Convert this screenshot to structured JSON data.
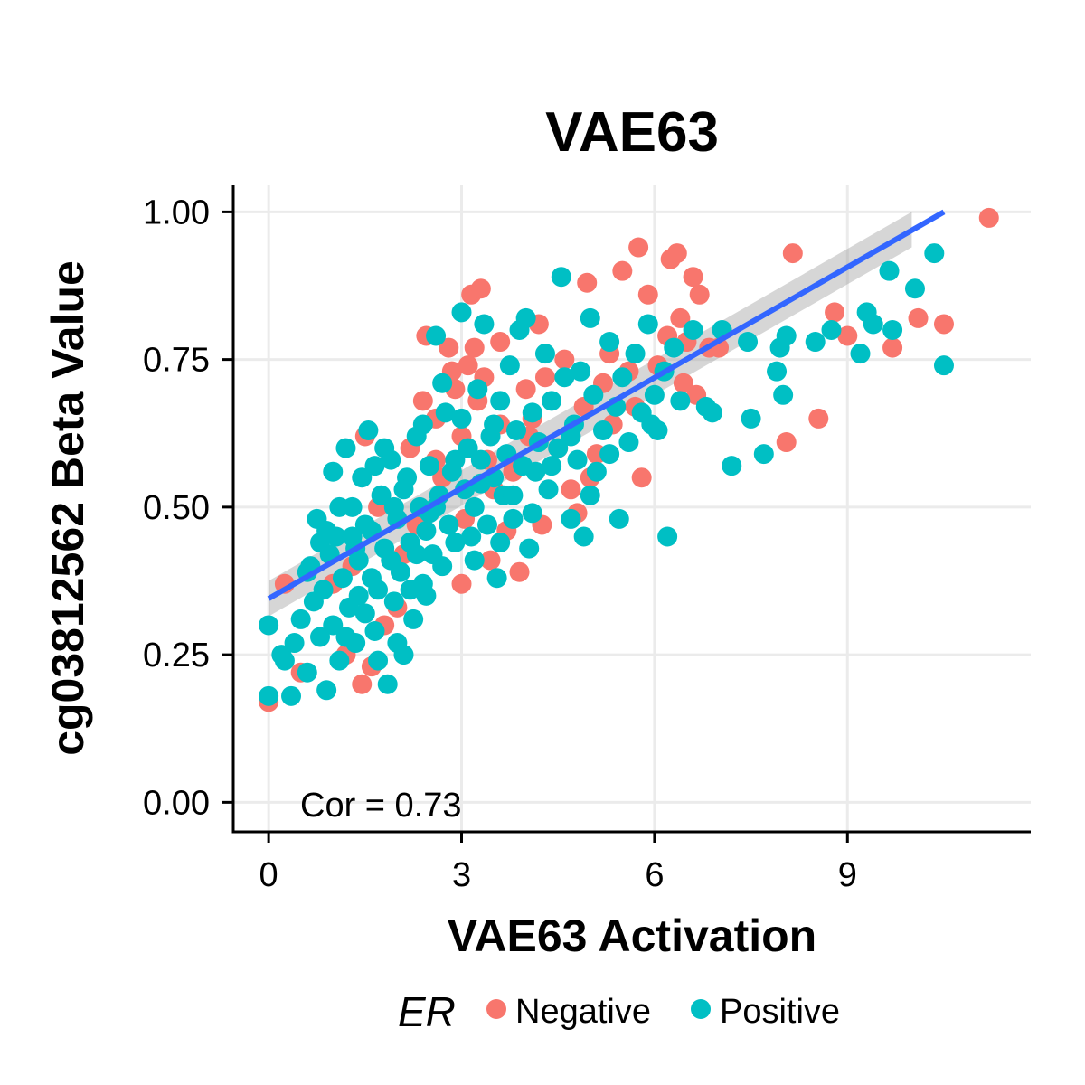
{
  "chart_data": {
    "type": "scatter",
    "title": "VAE63",
    "xlabel": "VAE63 Activation",
    "ylabel": "cg03812562 Beta Value",
    "xlim": [
      -0.55,
      11.85
    ],
    "ylim": [
      -0.05,
      1.045
    ],
    "x_ticks": [
      0,
      3,
      6,
      9
    ],
    "x_tick_labels": [
      "0",
      "3",
      "6",
      "9"
    ],
    "y_ticks": [
      0,
      0.25,
      0.5,
      0.75,
      1.0
    ],
    "y_tick_labels": [
      "0.00",
      "0.25",
      "0.50",
      "0.75",
      "1.00"
    ],
    "grid": true,
    "annotation": "Cor = 0.73",
    "legend": {
      "title": "ER",
      "position": "bottom",
      "entries": [
        {
          "label": "Negative",
          "color": "#F8766D"
        },
        {
          "label": "Positive",
          "color": "#00BFC4"
        }
      ]
    },
    "series": [
      {
        "name": "Negative",
        "color": "#F8766D",
        "points": [
          [
            0.0,
            0.17
          ],
          [
            0.25,
            0.37
          ],
          [
            0.5,
            0.22
          ],
          [
            1.0,
            0.37
          ],
          [
            1.2,
            0.25
          ],
          [
            1.45,
            0.2
          ],
          [
            1.6,
            0.23
          ],
          [
            1.5,
            0.62
          ],
          [
            1.8,
            0.3
          ],
          [
            2.1,
            0.42
          ],
          [
            2.2,
            0.6
          ],
          [
            2.4,
            0.68
          ],
          [
            2.45,
            0.79
          ],
          [
            2.6,
            0.65
          ],
          [
            2.8,
            0.77
          ],
          [
            2.85,
            0.73
          ],
          [
            2.9,
            0.7
          ],
          [
            3.0,
            0.62
          ],
          [
            3.05,
            0.48
          ],
          [
            3.1,
            0.74
          ],
          [
            3.15,
            0.86
          ],
          [
            3.2,
            0.77
          ],
          [
            3.25,
            0.68
          ],
          [
            3.3,
            0.87
          ],
          [
            3.35,
            0.72
          ],
          [
            3.4,
            0.58
          ],
          [
            3.45,
            0.41
          ],
          [
            3.5,
            0.53
          ],
          [
            3.6,
            0.64
          ],
          [
            3.7,
            0.46
          ],
          [
            3.8,
            0.56
          ],
          [
            3.9,
            0.39
          ],
          [
            4.0,
            0.7
          ],
          [
            4.05,
            0.62
          ],
          [
            4.2,
            0.81
          ],
          [
            4.25,
            0.47
          ],
          [
            4.3,
            0.72
          ],
          [
            4.5,
            0.6
          ],
          [
            4.6,
            0.75
          ],
          [
            4.7,
            0.53
          ],
          [
            4.8,
            0.49
          ],
          [
            4.9,
            0.67
          ],
          [
            4.95,
            0.88
          ],
          [
            5.0,
            0.55
          ],
          [
            5.1,
            0.59
          ],
          [
            5.2,
            0.71
          ],
          [
            5.3,
            0.76
          ],
          [
            5.35,
            0.64
          ],
          [
            5.5,
            0.9
          ],
          [
            5.6,
            0.73
          ],
          [
            5.7,
            0.67
          ],
          [
            5.75,
            0.94
          ],
          [
            5.8,
            0.55
          ],
          [
            5.9,
            0.86
          ],
          [
            6.05,
            0.74
          ],
          [
            6.2,
            0.79
          ],
          [
            6.25,
            0.92
          ],
          [
            6.35,
            0.93
          ],
          [
            6.4,
            0.82
          ],
          [
            6.45,
            0.71
          ],
          [
            6.5,
            0.78
          ],
          [
            6.6,
            0.89
          ],
          [
            6.65,
            0.69
          ],
          [
            6.7,
            0.86
          ],
          [
            6.85,
            0.77
          ],
          [
            7.0,
            0.77
          ],
          [
            8.05,
            0.61
          ],
          [
            8.15,
            0.93
          ],
          [
            8.55,
            0.65
          ],
          [
            8.8,
            0.83
          ],
          [
            9.0,
            0.79
          ],
          [
            9.7,
            0.77
          ],
          [
            10.1,
            0.82
          ],
          [
            10.5,
            0.81
          ],
          [
            11.2,
            0.99
          ],
          [
            2.0,
            0.33
          ],
          [
            2.3,
            0.47
          ],
          [
            2.7,
            0.55
          ],
          [
            1.3,
            0.4
          ],
          [
            1.7,
            0.5
          ],
          [
            2.6,
            0.58
          ],
          [
            3.0,
            0.37
          ],
          [
            3.6,
            0.78
          ],
          [
            4.1,
            0.65
          ]
        ]
      },
      {
        "name": "Positive",
        "color": "#00BFC4",
        "points": [
          [
            0.0,
            0.18
          ],
          [
            0.0,
            0.3
          ],
          [
            0.2,
            0.25
          ],
          [
            0.25,
            0.24
          ],
          [
            0.35,
            0.18
          ],
          [
            0.4,
            0.27
          ],
          [
            0.5,
            0.31
          ],
          [
            0.6,
            0.22
          ],
          [
            0.65,
            0.4
          ],
          [
            0.7,
            0.34
          ],
          [
            0.75,
            0.48
          ],
          [
            0.8,
            0.28
          ],
          [
            0.85,
            0.36
          ],
          [
            0.9,
            0.19
          ],
          [
            0.95,
            0.42
          ],
          [
            1.0,
            0.3
          ],
          [
            1.05,
            0.45
          ],
          [
            1.1,
            0.24
          ],
          [
            1.15,
            0.38
          ],
          [
            1.2,
            0.6
          ],
          [
            1.25,
            0.33
          ],
          [
            1.3,
            0.5
          ],
          [
            1.35,
            0.27
          ],
          [
            1.4,
            0.41
          ],
          [
            1.45,
            0.55
          ],
          [
            1.5,
            0.32
          ],
          [
            1.55,
            0.63
          ],
          [
            1.6,
            0.46
          ],
          [
            1.65,
            0.29
          ],
          [
            1.7,
            0.36
          ],
          [
            1.75,
            0.52
          ],
          [
            1.8,
            0.43
          ],
          [
            1.85,
            0.2
          ],
          [
            1.9,
            0.58
          ],
          [
            1.95,
            0.34
          ],
          [
            2.0,
            0.48
          ],
          [
            2.05,
            0.39
          ],
          [
            2.1,
            0.25
          ],
          [
            2.15,
            0.55
          ],
          [
            2.2,
            0.44
          ],
          [
            2.25,
            0.31
          ],
          [
            2.3,
            0.62
          ],
          [
            2.35,
            0.5
          ],
          [
            2.4,
            0.37
          ],
          [
            2.45,
            0.46
          ],
          [
            2.5,
            0.57
          ],
          [
            2.55,
            0.42
          ],
          [
            2.6,
            0.79
          ],
          [
            2.65,
            0.52
          ],
          [
            2.7,
            0.4
          ],
          [
            2.75,
            0.66
          ],
          [
            2.8,
            0.47
          ],
          [
            2.85,
            0.56
          ],
          [
            2.9,
            0.44
          ],
          [
            3.0,
            0.83
          ],
          [
            3.05,
            0.53
          ],
          [
            3.1,
            0.6
          ],
          [
            3.15,
            0.45
          ],
          [
            3.2,
            0.5
          ],
          [
            3.25,
            0.7
          ],
          [
            3.3,
            0.58
          ],
          [
            3.35,
            0.81
          ],
          [
            3.4,
            0.47
          ],
          [
            3.45,
            0.62
          ],
          [
            3.5,
            0.55
          ],
          [
            3.55,
            0.38
          ],
          [
            3.6,
            0.68
          ],
          [
            3.65,
            0.52
          ],
          [
            3.7,
            0.59
          ],
          [
            3.75,
            0.74
          ],
          [
            3.8,
            0.48
          ],
          [
            3.85,
            0.63
          ],
          [
            3.9,
            0.8
          ],
          [
            3.95,
            0.57
          ],
          [
            4.0,
            0.82
          ],
          [
            4.05,
            0.43
          ],
          [
            4.1,
            0.66
          ],
          [
            4.15,
            0.56
          ],
          [
            4.2,
            0.61
          ],
          [
            4.3,
            0.76
          ],
          [
            4.35,
            0.53
          ],
          [
            4.4,
            0.68
          ],
          [
            4.5,
            0.6
          ],
          [
            4.55,
            0.89
          ],
          [
            4.6,
            0.72
          ],
          [
            4.7,
            0.48
          ],
          [
            4.75,
            0.64
          ],
          [
            4.8,
            0.58
          ],
          [
            4.85,
            0.73
          ],
          [
            4.9,
            0.45
          ],
          [
            5.0,
            0.82
          ],
          [
            5.05,
            0.69
          ],
          [
            5.1,
            0.56
          ],
          [
            5.2,
            0.63
          ],
          [
            5.3,
            0.78
          ],
          [
            5.4,
            0.67
          ],
          [
            5.45,
            0.48
          ],
          [
            5.5,
            0.72
          ],
          [
            5.6,
            0.61
          ],
          [
            5.7,
            0.76
          ],
          [
            5.8,
            0.66
          ],
          [
            5.9,
            0.81
          ],
          [
            5.95,
            0.64
          ],
          [
            6.0,
            0.69
          ],
          [
            6.05,
            0.63
          ],
          [
            6.15,
            0.73
          ],
          [
            6.2,
            0.45
          ],
          [
            6.3,
            0.77
          ],
          [
            6.4,
            0.68
          ],
          [
            6.6,
            0.8
          ],
          [
            6.8,
            0.67
          ],
          [
            6.9,
            0.66
          ],
          [
            7.05,
            0.8
          ],
          [
            7.2,
            0.57
          ],
          [
            7.45,
            0.78
          ],
          [
            7.5,
            0.65
          ],
          [
            7.7,
            0.59
          ],
          [
            7.9,
            0.73
          ],
          [
            7.95,
            0.77
          ],
          [
            8.0,
            0.69
          ],
          [
            8.05,
            0.79
          ],
          [
            8.5,
            0.78
          ],
          [
            8.75,
            0.8
          ],
          [
            9.2,
            0.76
          ],
          [
            9.3,
            0.83
          ],
          [
            9.4,
            0.81
          ],
          [
            9.65,
            0.9
          ],
          [
            9.7,
            0.8
          ],
          [
            10.05,
            0.87
          ],
          [
            10.35,
            0.93
          ],
          [
            10.5,
            0.74
          ],
          [
            1.0,
            0.56
          ],
          [
            1.3,
            0.45
          ],
          [
            1.6,
            0.38
          ],
          [
            1.9,
            0.41
          ],
          [
            2.2,
            0.36
          ],
          [
            2.5,
            0.49
          ],
          [
            0.9,
            0.46
          ],
          [
            1.1,
            0.5
          ],
          [
            1.5,
            0.47
          ],
          [
            1.8,
            0.6
          ],
          [
            2.1,
            0.53
          ],
          [
            2.4,
            0.64
          ],
          [
            2.7,
            0.71
          ],
          [
            3.0,
            0.65
          ],
          [
            3.3,
            0.54
          ],
          [
            3.6,
            0.44
          ],
          [
            2.0,
            0.27
          ],
          [
            1.4,
            0.35
          ],
          [
            0.6,
            0.39
          ],
          [
            0.8,
            0.44
          ],
          [
            1.2,
            0.28
          ],
          [
            1.7,
            0.24
          ],
          [
            2.3,
            0.42
          ],
          [
            2.6,
            0.5
          ],
          [
            2.9,
            0.58
          ],
          [
            3.2,
            0.41
          ],
          [
            3.5,
            0.64
          ],
          [
            3.8,
            0.52
          ],
          [
            4.1,
            0.49
          ],
          [
            4.4,
            0.57
          ],
          [
            4.7,
            0.62
          ],
          [
            5.0,
            0.52
          ],
          [
            5.3,
            0.59
          ],
          [
            1.95,
            0.5
          ],
          [
            2.45,
            0.35
          ],
          [
            1.65,
            0.57
          ],
          [
            1.35,
            0.43
          ]
        ]
      }
    ],
    "fit": {
      "method": "linear",
      "color": "#3366FF",
      "x_start": 0.0,
      "y_start": 0.345,
      "x_end": 10.5,
      "y_end": 1.0
    }
  }
}
